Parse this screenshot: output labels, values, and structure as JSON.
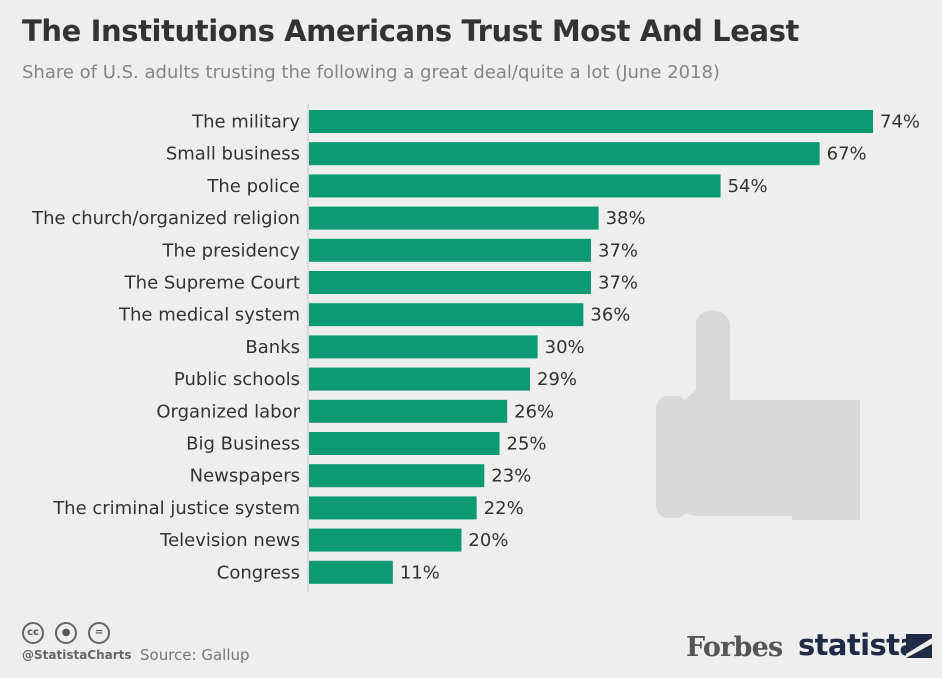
{
  "title": "The Institutions Americans Trust Most And Least",
  "subtitle": "Share of U.S. adults trusting the following a great deal/quite a lot (June 2018)",
  "footer": {
    "handle": "@StatistaCharts",
    "source": "Source: Gallup",
    "forbes": "Forbes",
    "statista": "statista"
  },
  "icons": [
    "creative-commons-icon",
    "attribution-icon",
    "no-derivatives-icon",
    "thumbs-up-icon",
    "statista-logo-icon"
  ],
  "colors": {
    "bar": "#0d9a73",
    "background": "#eeeeee",
    "thumb": "#d8d8d8"
  },
  "chart_data": {
    "type": "bar",
    "orientation": "horizontal",
    "title": "The Institutions Americans Trust Most And Least",
    "subtitle": "Share of U.S. adults trusting the following a great deal/quite a lot (June 2018)",
    "categories": [
      "The military",
      "Small business",
      "The police",
      "The church/organized religion",
      "The presidency",
      "The Supreme Court",
      "The medical system",
      "Banks",
      "Public schools",
      "Organized labor",
      "Big Business",
      "Newspapers",
      "The criminal justice system",
      "Television news",
      "Congress"
    ],
    "values": [
      74,
      67,
      54,
      38,
      37,
      37,
      36,
      30,
      29,
      26,
      25,
      23,
      22,
      20,
      11
    ],
    "value_labels": [
      "74%",
      "67%",
      "54%",
      "38%",
      "37%",
      "37%",
      "36%",
      "30%",
      "29%",
      "26%",
      "25%",
      "23%",
      "22%",
      "20%",
      "11%"
    ],
    "unit": "%",
    "xlim": [
      0,
      74
    ],
    "grid": false,
    "legend": "none"
  }
}
